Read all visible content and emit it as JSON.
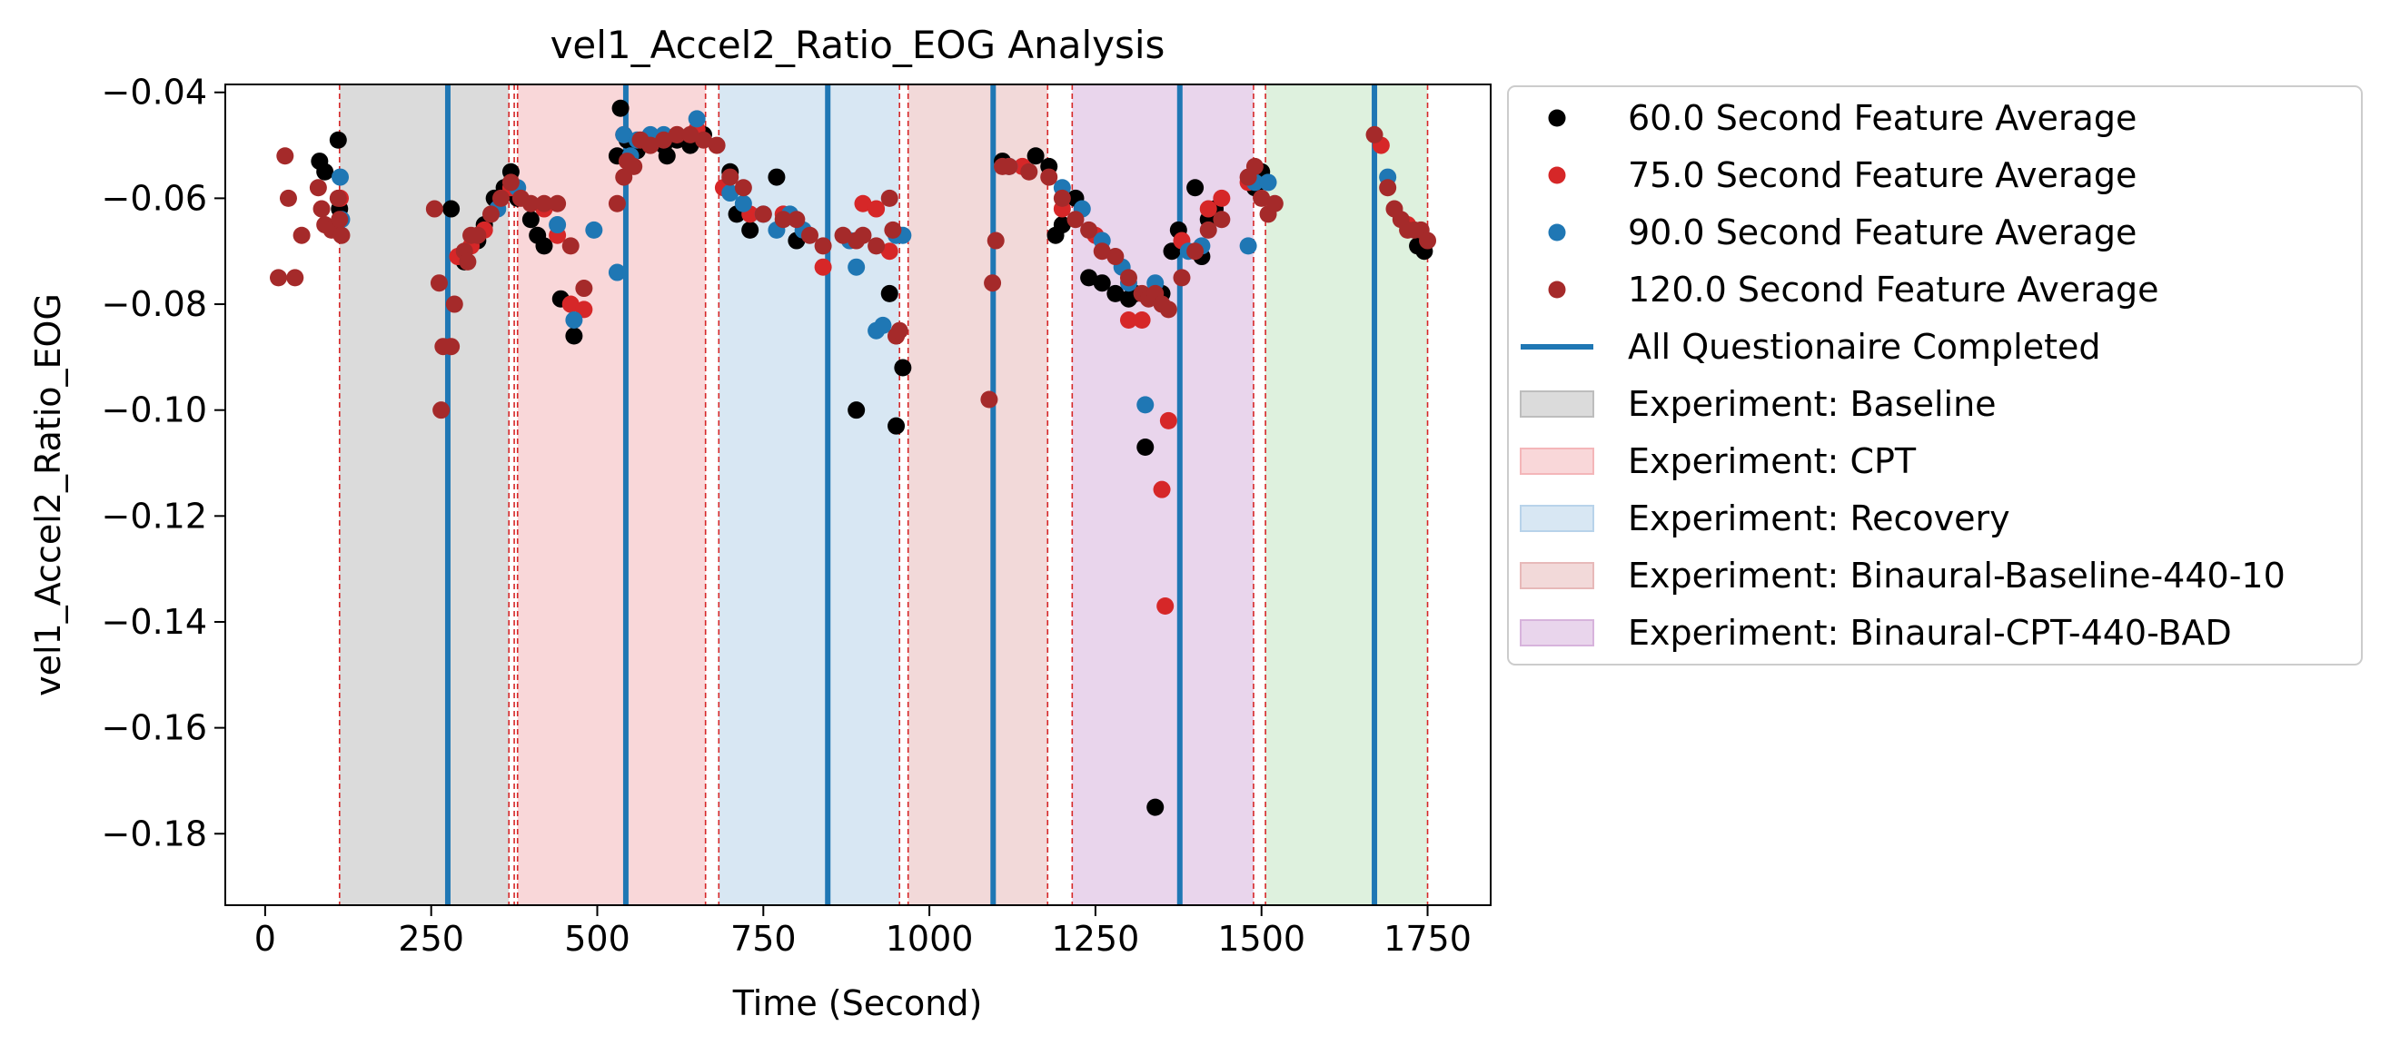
{
  "chart_data": {
    "type": "scatter",
    "title": "vel1_Accel2_Ratio_EOG Analysis",
    "xlabel": "Time (Second)",
    "ylabel": "vel1_Accel2_Ratio_EOG",
    "xlim": [
      -60,
      1845
    ],
    "ylim": [
      -0.1935,
      -0.0385
    ],
    "xticks": [
      0,
      250,
      500,
      750,
      1000,
      1250,
      1500,
      1750
    ],
    "xtick_labels": [
      "0",
      "250",
      "500",
      "750",
      "1000",
      "1250",
      "1500",
      "1750"
    ],
    "yticks": [
      -0.18,
      -0.16,
      -0.14,
      -0.12,
      -0.1,
      -0.08,
      -0.06,
      -0.04
    ],
    "ytick_labels": [
      "−0.18",
      "−0.16",
      "−0.14",
      "−0.12",
      "−0.10",
      "−0.08",
      "−0.06",
      "−0.04"
    ],
    "grid": false,
    "legend_position": "outside-right-top",
    "regions": [
      {
        "name": "Experiment: Baseline",
        "x": [
          112,
          367
        ],
        "color": "#bdbdbd",
        "legend": true
      },
      {
        "name": "Experiment: CPT",
        "x": [
          380,
          663
        ],
        "color": "#f4b6b9",
        "legend": true
      },
      {
        "name": "Experiment: Recovery",
        "x": [
          683,
          955
        ],
        "color": "#b8d3ea",
        "legend": true
      },
      {
        "name": "Experiment: Binaural-Baseline-440-10",
        "x": [
          968,
          1178
        ],
        "color": "#e7b9b9",
        "legend": true
      },
      {
        "name": "Experiment: Binaural-CPT-440-BAD",
        "x": [
          1215,
          1488
        ],
        "color": "#d7b3dc",
        "legend": true
      },
      {
        "name": "",
        "x": [
          1506,
          1750
        ],
        "color": "#c3e6c3",
        "legend": false
      }
    ],
    "boundary_lines": [
      112,
      367,
      375,
      380,
      663,
      683,
      955,
      968,
      1178,
      1215,
      1488,
      1506,
      1750
    ],
    "boundary_color": "#d62728",
    "completion_lines": {
      "name": "All Questionaire Completed",
      "x": [
        275,
        543,
        847,
        1096,
        1377,
        1670
      ],
      "color": "#1f77b4"
    },
    "series": [
      {
        "name": "60.0 Second Feature Average",
        "color": "#000000",
        "points": [
          [
            82,
            -0.053
          ],
          [
            90,
            -0.055
          ],
          [
            110,
            -0.049
          ],
          [
            112,
            -0.062
          ],
          [
            280,
            -0.062
          ],
          [
            300,
            -0.072
          ],
          [
            320,
            -0.068
          ],
          [
            330,
            -0.065
          ],
          [
            345,
            -0.06
          ],
          [
            360,
            -0.058
          ],
          [
            370,
            -0.055
          ],
          [
            380,
            -0.06
          ],
          [
            400,
            -0.064
          ],
          [
            410,
            -0.067
          ],
          [
            420,
            -0.069
          ],
          [
            445,
            -0.079
          ],
          [
            465,
            -0.086
          ],
          [
            530,
            -0.052
          ],
          [
            535,
            -0.043
          ],
          [
            545,
            -0.049
          ],
          [
            560,
            -0.051
          ],
          [
            600,
            -0.05
          ],
          [
            605,
            -0.052
          ],
          [
            620,
            -0.049
          ],
          [
            640,
            -0.05
          ],
          [
            660,
            -0.048
          ],
          [
            700,
            -0.055
          ],
          [
            710,
            -0.063
          ],
          [
            730,
            -0.066
          ],
          [
            770,
            -0.056
          ],
          [
            800,
            -0.068
          ],
          [
            890,
            -0.1
          ],
          [
            940,
            -0.078
          ],
          [
            950,
            -0.103
          ],
          [
            960,
            -0.092
          ],
          [
            1110,
            -0.053
          ],
          [
            1160,
            -0.052
          ],
          [
            1180,
            -0.054
          ],
          [
            1190,
            -0.067
          ],
          [
            1200,
            -0.065
          ],
          [
            1220,
            -0.06
          ],
          [
            1240,
            -0.075
          ],
          [
            1260,
            -0.076
          ],
          [
            1280,
            -0.078
          ],
          [
            1300,
            -0.079
          ],
          [
            1310,
            -0.078
          ],
          [
            1325,
            -0.107
          ],
          [
            1340,
            -0.175
          ],
          [
            1350,
            -0.078
          ],
          [
            1365,
            -0.07
          ],
          [
            1375,
            -0.066
          ],
          [
            1400,
            -0.058
          ],
          [
            1410,
            -0.071
          ],
          [
            1420,
            -0.064
          ],
          [
            1430,
            -0.062
          ],
          [
            1490,
            -0.058
          ],
          [
            1500,
            -0.055
          ],
          [
            1735,
            -0.069
          ],
          [
            1745,
            -0.07
          ]
        ]
      },
      {
        "name": "75.0 Second Feature Average",
        "color": "#d62728",
        "points": [
          [
            113,
            -0.06
          ],
          [
            290,
            -0.071
          ],
          [
            310,
            -0.069
          ],
          [
            330,
            -0.066
          ],
          [
            370,
            -0.058
          ],
          [
            420,
            -0.062
          ],
          [
            440,
            -0.067
          ],
          [
            460,
            -0.08
          ],
          [
            480,
            -0.081
          ],
          [
            540,
            -0.048
          ],
          [
            580,
            -0.05
          ],
          [
            620,
            -0.048
          ],
          [
            650,
            -0.047
          ],
          [
            690,
            -0.058
          ],
          [
            730,
            -0.063
          ],
          [
            780,
            -0.063
          ],
          [
            840,
            -0.073
          ],
          [
            900,
            -0.061
          ],
          [
            920,
            -0.062
          ],
          [
            940,
            -0.07
          ],
          [
            950,
            -0.086
          ],
          [
            1140,
            -0.054
          ],
          [
            1200,
            -0.062
          ],
          [
            1250,
            -0.067
          ],
          [
            1300,
            -0.083
          ],
          [
            1320,
            -0.083
          ],
          [
            1350,
            -0.115
          ],
          [
            1355,
            -0.137
          ],
          [
            1360,
            -0.102
          ],
          [
            1380,
            -0.068
          ],
          [
            1420,
            -0.062
          ],
          [
            1440,
            -0.06
          ],
          [
            1480,
            -0.057
          ],
          [
            1680,
            -0.05
          ],
          [
            1720,
            -0.065
          ]
        ]
      },
      {
        "name": "90.0 Second Feature Average",
        "color": "#1f77b4",
        "points": [
          [
            113,
            -0.056
          ],
          [
            115,
            -0.064
          ],
          [
            350,
            -0.062
          ],
          [
            380,
            -0.058
          ],
          [
            440,
            -0.065
          ],
          [
            465,
            -0.083
          ],
          [
            495,
            -0.066
          ],
          [
            530,
            -0.074
          ],
          [
            540,
            -0.048
          ],
          [
            550,
            -0.052
          ],
          [
            560,
            -0.049
          ],
          [
            580,
            -0.048
          ],
          [
            600,
            -0.048
          ],
          [
            650,
            -0.045
          ],
          [
            700,
            -0.059
          ],
          [
            720,
            -0.061
          ],
          [
            750,
            -0.063
          ],
          [
            770,
            -0.066
          ],
          [
            790,
            -0.063
          ],
          [
            810,
            -0.066
          ],
          [
            880,
            -0.068
          ],
          [
            890,
            -0.073
          ],
          [
            920,
            -0.085
          ],
          [
            930,
            -0.084
          ],
          [
            950,
            -0.067
          ],
          [
            960,
            -0.067
          ],
          [
            1120,
            -0.054
          ],
          [
            1200,
            -0.058
          ],
          [
            1230,
            -0.062
          ],
          [
            1260,
            -0.068
          ],
          [
            1290,
            -0.073
          ],
          [
            1300,
            -0.076
          ],
          [
            1325,
            -0.099
          ],
          [
            1340,
            -0.076
          ],
          [
            1390,
            -0.07
          ],
          [
            1410,
            -0.069
          ],
          [
            1480,
            -0.069
          ],
          [
            1490,
            -0.057
          ],
          [
            1510,
            -0.057
          ],
          [
            1690,
            -0.056
          ]
        ]
      },
      {
        "name": "120.0 Second Feature Average",
        "color": "#a52a2a",
        "points": [
          [
            20,
            -0.075
          ],
          [
            30,
            -0.052
          ],
          [
            35,
            -0.06
          ],
          [
            45,
            -0.075
          ],
          [
            55,
            -0.067
          ],
          [
            80,
            -0.058
          ],
          [
            85,
            -0.062
          ],
          [
            90,
            -0.065
          ],
          [
            100,
            -0.066
          ],
          [
            110,
            -0.06
          ],
          [
            112,
            -0.064
          ],
          [
            115,
            -0.067
          ],
          [
            255,
            -0.062
          ],
          [
            262,
            -0.076
          ],
          [
            265,
            -0.1
          ],
          [
            268,
            -0.088
          ],
          [
            280,
            -0.088
          ],
          [
            285,
            -0.08
          ],
          [
            300,
            -0.07
          ],
          [
            305,
            -0.072
          ],
          [
            310,
            -0.067
          ],
          [
            320,
            -0.067
          ],
          [
            340,
            -0.063
          ],
          [
            355,
            -0.06
          ],
          [
            370,
            -0.057
          ],
          [
            385,
            -0.06
          ],
          [
            400,
            -0.061
          ],
          [
            420,
            -0.061
          ],
          [
            440,
            -0.061
          ],
          [
            460,
            -0.069
          ],
          [
            480,
            -0.077
          ],
          [
            530,
            -0.061
          ],
          [
            540,
            -0.056
          ],
          [
            545,
            -0.053
          ],
          [
            555,
            -0.054
          ],
          [
            565,
            -0.049
          ],
          [
            580,
            -0.05
          ],
          [
            600,
            -0.049
          ],
          [
            620,
            -0.048
          ],
          [
            640,
            -0.048
          ],
          [
            660,
            -0.049
          ],
          [
            680,
            -0.05
          ],
          [
            700,
            -0.056
          ],
          [
            720,
            -0.058
          ],
          [
            750,
            -0.063
          ],
          [
            780,
            -0.064
          ],
          [
            800,
            -0.064
          ],
          [
            820,
            -0.067
          ],
          [
            840,
            -0.069
          ],
          [
            870,
            -0.067
          ],
          [
            890,
            -0.068
          ],
          [
            900,
            -0.067
          ],
          [
            920,
            -0.069
          ],
          [
            940,
            -0.06
          ],
          [
            945,
            -0.066
          ],
          [
            950,
            -0.086
          ],
          [
            955,
            -0.085
          ],
          [
            1090,
            -0.098
          ],
          [
            1095,
            -0.076
          ],
          [
            1100,
            -0.068
          ],
          [
            1110,
            -0.054
          ],
          [
            1120,
            -0.054
          ],
          [
            1150,
            -0.055
          ],
          [
            1180,
            -0.056
          ],
          [
            1200,
            -0.06
          ],
          [
            1220,
            -0.064
          ],
          [
            1240,
            -0.066
          ],
          [
            1260,
            -0.07
          ],
          [
            1280,
            -0.071
          ],
          [
            1300,
            -0.075
          ],
          [
            1320,
            -0.078
          ],
          [
            1330,
            -0.079
          ],
          [
            1340,
            -0.078
          ],
          [
            1350,
            -0.08
          ],
          [
            1360,
            -0.081
          ],
          [
            1380,
            -0.075
          ],
          [
            1400,
            -0.07
          ],
          [
            1420,
            -0.066
          ],
          [
            1440,
            -0.064
          ],
          [
            1480,
            -0.056
          ],
          [
            1490,
            -0.054
          ],
          [
            1500,
            -0.06
          ],
          [
            1510,
            -0.063
          ],
          [
            1520,
            -0.061
          ],
          [
            1670,
            -0.048
          ],
          [
            1690,
            -0.058
          ],
          [
            1700,
            -0.062
          ],
          [
            1710,
            -0.064
          ],
          [
            1720,
            -0.066
          ],
          [
            1730,
            -0.066
          ],
          [
            1740,
            -0.066
          ],
          [
            1750,
            -0.068
          ]
        ]
      }
    ]
  }
}
